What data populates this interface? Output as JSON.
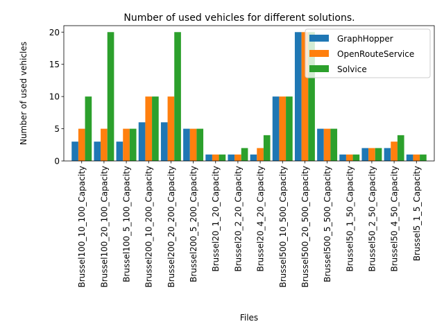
{
  "chart_data": {
    "type": "bar",
    "title": "Number of used vehicles for different solutions.",
    "xlabel": "Files",
    "ylabel": "Number of used vehicles",
    "ylim": [
      0,
      21
    ],
    "yticks": [
      0,
      5,
      10,
      15,
      20
    ],
    "legend_position": "top-right",
    "grid": false,
    "categories": [
      "Brussel100_10_100_Capacity",
      "Brussel100_20_100_Capacity",
      "Brussel100_5_100_Capacity",
      "Brussel200_10_200_Capacity",
      "Brussel200_20_200_Capacity",
      "Brussel200_5_200_Capacity",
      "Brussel20_1_20_Capacity",
      "Brussel20_2_20_Capacity",
      "Brussel20_4_20_Capacity",
      "Brussel500_10_500_Capacity",
      "Brussel500_20_500_Capacity",
      "Brussel500_5_500_Capacity",
      "Brussel50_1_50_Capacity",
      "Brussel50_2_50_Capacity",
      "Brussel50_4_50_Capacity",
      "Brussel5_1_5_Capacity"
    ],
    "series": [
      {
        "name": "GraphHopper",
        "color": "#1f77b4",
        "values": [
          3,
          3,
          3,
          6,
          6,
          5,
          1,
          1,
          1,
          10,
          20,
          5,
          1,
          2,
          2,
          1
        ]
      },
      {
        "name": "OpenRouteService",
        "color": "#ff7f0e",
        "values": [
          5,
          5,
          5,
          10,
          10,
          5,
          1,
          1,
          2,
          10,
          20,
          5,
          1,
          2,
          3,
          1
        ]
      },
      {
        "name": "Solvice",
        "color": "#2ca02c",
        "values": [
          10,
          20,
          5,
          10,
          20,
          5,
          1,
          2,
          4,
          10,
          20,
          5,
          1,
          2,
          4,
          1
        ]
      }
    ]
  }
}
